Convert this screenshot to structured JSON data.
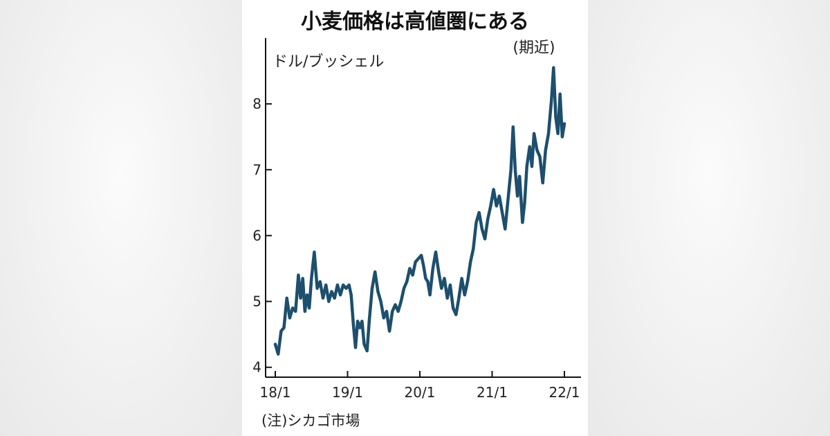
{
  "chart_data": {
    "type": "line",
    "title": "小麦価格は高値圏にある",
    "ylabel": "ドル/ブッシェル",
    "annotation": "(期近)",
    "note": "(注)シカゴ市場",
    "ylim": [
      3.85,
      9.0
    ],
    "xlim": [
      2018.0,
      2022.0
    ],
    "yticks": [
      4,
      5,
      6,
      7,
      8
    ],
    "xticks": [
      {
        "label": "18/1",
        "value": 2018.0
      },
      {
        "label": "19/1",
        "value": 2019.0
      },
      {
        "label": "20/1",
        "value": 2020.0
      },
      {
        "label": "21/1",
        "value": 2021.0
      },
      {
        "label": "22/1",
        "value": 2022.0
      }
    ],
    "series": [
      {
        "color": "#1d4f6e",
        "points": [
          [
            2018.0,
            4.35
          ],
          [
            2018.04,
            4.2
          ],
          [
            2018.08,
            4.55
          ],
          [
            2018.12,
            4.6
          ],
          [
            2018.16,
            5.05
          ],
          [
            2018.2,
            4.75
          ],
          [
            2018.24,
            4.9
          ],
          [
            2018.28,
            4.85
          ],
          [
            2018.32,
            5.4
          ],
          [
            2018.35,
            5.05
          ],
          [
            2018.38,
            5.35
          ],
          [
            2018.41,
            4.85
          ],
          [
            2018.44,
            5.1
          ],
          [
            2018.47,
            4.9
          ],
          [
            2018.5,
            5.35
          ],
          [
            2018.54,
            5.75
          ],
          [
            2018.58,
            5.2
          ],
          [
            2018.62,
            5.3
          ],
          [
            2018.66,
            5.05
          ],
          [
            2018.7,
            5.25
          ],
          [
            2018.74,
            5.0
          ],
          [
            2018.78,
            5.15
          ],
          [
            2018.82,
            5.05
          ],
          [
            2018.86,
            5.25
          ],
          [
            2018.9,
            5.1
          ],
          [
            2018.94,
            5.25
          ],
          [
            2018.98,
            5.2
          ],
          [
            2019.02,
            5.25
          ],
          [
            2019.05,
            5.1
          ],
          [
            2019.08,
            4.65
          ],
          [
            2019.11,
            4.3
          ],
          [
            2019.14,
            4.7
          ],
          [
            2019.17,
            4.6
          ],
          [
            2019.2,
            4.7
          ],
          [
            2019.23,
            4.35
          ],
          [
            2019.27,
            4.25
          ],
          [
            2019.3,
            4.7
          ],
          [
            2019.34,
            5.2
          ],
          [
            2019.38,
            5.45
          ],
          [
            2019.42,
            5.15
          ],
          [
            2019.46,
            5.0
          ],
          [
            2019.5,
            4.75
          ],
          [
            2019.54,
            4.85
          ],
          [
            2019.58,
            4.55
          ],
          [
            2019.62,
            4.85
          ],
          [
            2019.66,
            4.95
          ],
          [
            2019.7,
            4.85
          ],
          [
            2019.74,
            5.0
          ],
          [
            2019.78,
            5.2
          ],
          [
            2019.82,
            5.3
          ],
          [
            2019.86,
            5.5
          ],
          [
            2019.9,
            5.4
          ],
          [
            2019.94,
            5.6
          ],
          [
            2019.98,
            5.65
          ],
          [
            2020.02,
            5.7
          ],
          [
            2020.05,
            5.55
          ],
          [
            2020.08,
            5.35
          ],
          [
            2020.11,
            5.3
          ],
          [
            2020.14,
            5.1
          ],
          [
            2020.18,
            5.5
          ],
          [
            2020.22,
            5.75
          ],
          [
            2020.26,
            5.45
          ],
          [
            2020.3,
            5.2
          ],
          [
            2020.34,
            5.35
          ],
          [
            2020.38,
            5.05
          ],
          [
            2020.42,
            5.25
          ],
          [
            2020.46,
            4.9
          ],
          [
            2020.5,
            4.8
          ],
          [
            2020.54,
            5.05
          ],
          [
            2020.58,
            5.35
          ],
          [
            2020.62,
            5.1
          ],
          [
            2020.66,
            5.3
          ],
          [
            2020.7,
            5.6
          ],
          [
            2020.74,
            5.8
          ],
          [
            2020.78,
            6.2
          ],
          [
            2020.82,
            6.35
          ],
          [
            2020.86,
            6.1
          ],
          [
            2020.9,
            5.95
          ],
          [
            2020.94,
            6.25
          ],
          [
            2020.98,
            6.45
          ],
          [
            2021.02,
            6.7
          ],
          [
            2021.06,
            6.45
          ],
          [
            2021.1,
            6.6
          ],
          [
            2021.14,
            6.35
          ],
          [
            2021.18,
            6.1
          ],
          [
            2021.22,
            6.55
          ],
          [
            2021.26,
            7.0
          ],
          [
            2021.29,
            7.65
          ],
          [
            2021.32,
            7.0
          ],
          [
            2021.35,
            6.6
          ],
          [
            2021.38,
            6.9
          ],
          [
            2021.42,
            6.2
          ],
          [
            2021.45,
            6.5
          ],
          [
            2021.48,
            7.05
          ],
          [
            2021.52,
            7.35
          ],
          [
            2021.55,
            7.05
          ],
          [
            2021.58,
            7.55
          ],
          [
            2021.62,
            7.3
          ],
          [
            2021.66,
            7.2
          ],
          [
            2021.7,
            6.8
          ],
          [
            2021.74,
            7.3
          ],
          [
            2021.78,
            7.55
          ],
          [
            2021.82,
            8.05
          ],
          [
            2021.85,
            8.55
          ],
          [
            2021.88,
            7.8
          ],
          [
            2021.91,
            7.55
          ],
          [
            2021.94,
            8.15
          ],
          [
            2021.97,
            7.5
          ],
          [
            2022.0,
            7.7
          ]
        ]
      }
    ]
  }
}
